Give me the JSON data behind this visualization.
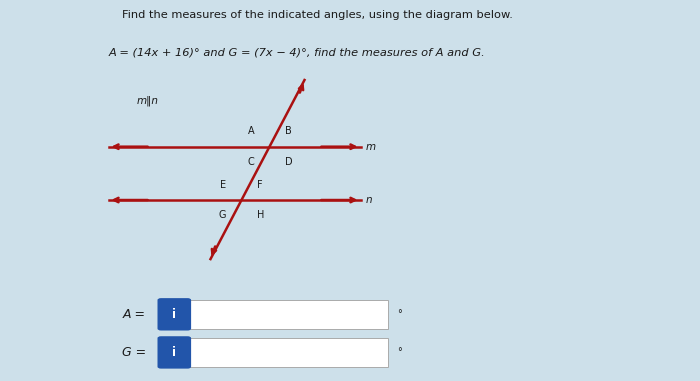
{
  "bg_color": "#cde0ea",
  "title_text": "Find the measures of the indicated angles, using the diagram below.",
  "problem_text_parts": [
    {
      "text": "A",
      "style": "italic"
    },
    {
      "text": " = (14",
      "style": "normal"
    },
    {
      "text": "x",
      "style": "italic"
    },
    {
      "text": " + 16)° and ",
      "style": "normal"
    },
    {
      "text": "G",
      "style": "italic"
    },
    {
      "text": " = (7",
      "style": "normal"
    },
    {
      "text": "x",
      "style": "italic"
    },
    {
      "text": " − 4)°, find the measures of ",
      "style": "normal"
    },
    {
      "text": "A",
      "style": "italic"
    },
    {
      "text": " and ",
      "style": "normal"
    },
    {
      "text": "G",
      "style": "italic"
    },
    {
      "text": ".",
      "style": "normal"
    }
  ],
  "parallel_label": "m‖n",
  "line_m_label": "m",
  "line_n_label": "n",
  "line_color": "#aa1111",
  "text_color": "#1a1a1a",
  "input_box_color": "#2255aa",
  "input_box_text": "i",
  "answer_A_label_parts": [
    {
      "text": "A",
      "style": "italic"
    },
    {
      "text": " =",
      "style": "normal"
    }
  ],
  "answer_G_label_parts": [
    {
      "text": "G",
      "style": "italic"
    },
    {
      "text": " =",
      "style": "normal"
    }
  ]
}
